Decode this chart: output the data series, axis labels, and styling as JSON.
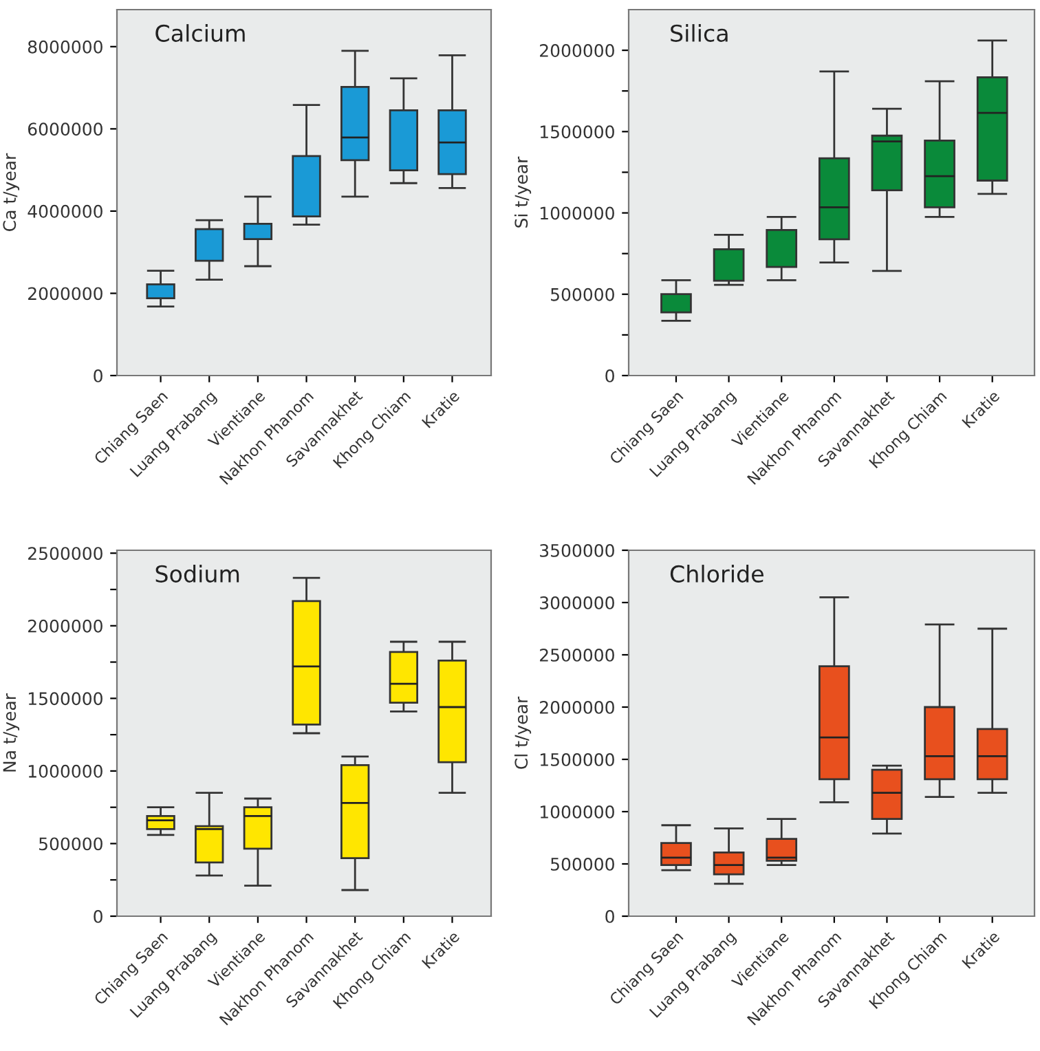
{
  "chart_data": [
    {
      "type": "box",
      "title": "Calcium",
      "ylabel": "Ca t/year",
      "categories": [
        "Chiang Saen",
        "Luang Prabang",
        "Vientiane",
        "Nakhon Phanom",
        "Savannakhet",
        "Khong Chiam",
        "Kratie"
      ],
      "color": "#1a9ad6",
      "ylim": [
        0,
        8900000
      ],
      "yticks": [
        0,
        2000000,
        4000000,
        6000000,
        8000000
      ],
      "boxes": [
        {
          "low": 1680000,
          "q1": 1880000,
          "median": null,
          "q3": 2220000,
          "high": 2550000
        },
        {
          "low": 2330000,
          "q1": 2790000,
          "median": null,
          "q3": 3560000,
          "high": 3780000
        },
        {
          "low": 2660000,
          "q1": 3320000,
          "median": null,
          "q3": 3690000,
          "high": 4350000
        },
        {
          "low": 3670000,
          "q1": 3870000,
          "median": null,
          "q3": 5340000,
          "high": 6580000
        },
        {
          "low": 4350000,
          "q1": 5240000,
          "median": 5790000,
          "q3": 7020000,
          "high": 7900000
        },
        {
          "low": 4680000,
          "q1": 4990000,
          "median": null,
          "q3": 6450000,
          "high": 7230000
        },
        {
          "low": 4560000,
          "q1": 4900000,
          "median": 5670000,
          "q3": 6450000,
          "high": 7790000
        }
      ]
    },
    {
      "type": "box",
      "title": "Silica",
      "ylabel": "Si t/year",
      "categories": [
        "Chiang Saen",
        "Luang Prabang",
        "Vientiane",
        "Nakhon Phanom",
        "Savannakhet",
        "Khong Chiam",
        "Kratie"
      ],
      "color": "#0a8a3a",
      "ylim": [
        0,
        2250000
      ],
      "yticks": [
        0,
        {
          "value": 250000,
          "label": null
        },
        500000,
        {
          "value": 750000,
          "label": null
        },
        1000000,
        {
          "value": 1250000,
          "label": null
        },
        1500000,
        {
          "value": 1750000,
          "label": null
        },
        2000000
      ],
      "boxes": [
        {
          "low": 337000,
          "q1": 389000,
          "median": null,
          "q3": 501000,
          "high": 586000
        },
        {
          "low": 558000,
          "q1": 583000,
          "median": null,
          "q3": 777000,
          "high": 865000
        },
        {
          "low": 586000,
          "q1": 668000,
          "median": null,
          "q3": 895000,
          "high": 975000
        },
        {
          "low": 695000,
          "q1": 838000,
          "median": 1035000,
          "q3": 1336000,
          "high": 1870000
        },
        {
          "low": 643000,
          "q1": 1139000,
          "median": 1440000,
          "q3": 1475000,
          "high": 1640000
        },
        {
          "low": 975000,
          "q1": 1035000,
          "median": 1226000,
          "q3": 1445000,
          "high": 1810000
        },
        {
          "low": 1117000,
          "q1": 1199000,
          "median": 1615000,
          "q3": 1834000,
          "high": 2060000
        }
      ]
    },
    {
      "type": "box",
      "title": "Sodium",
      "ylabel": "Na t/year",
      "categories": [
        "Chiang Saen",
        "Luang Prabang",
        "Vientiane",
        "Nakhon Phanom",
        "Savannakhet",
        "Khong Chiam",
        "Kratie"
      ],
      "color": "#ffe600",
      "ylim": [
        0,
        2520000
      ],
      "yticks": [
        0,
        {
          "value": 250000,
          "label": null
        },
        500000,
        {
          "value": 750000,
          "label": null
        },
        1000000,
        {
          "value": 1250000,
          "label": null
        },
        1500000,
        {
          "value": 1750000,
          "label": null
        },
        2000000,
        {
          "value": 2250000,
          "label": null
        },
        2500000
      ],
      "boxes": [
        {
          "low": 560000,
          "q1": 600000,
          "median": 660000,
          "q3": 690000,
          "high": 750000
        },
        {
          "low": 280000,
          "q1": 370000,
          "median": 600000,
          "q3": 620000,
          "high": 850000
        },
        {
          "low": 210000,
          "q1": 465000,
          "median": 690000,
          "q3": 750000,
          "high": 810000
        },
        {
          "low": 1260000,
          "q1": 1320000,
          "median": 1720000,
          "q3": 2170000,
          "high": 2330000
        },
        {
          "low": 180000,
          "q1": 400000,
          "median": 780000,
          "q3": 1040000,
          "high": 1100000
        },
        {
          "low": 1410000,
          "q1": 1470000,
          "median": 1600000,
          "q3": 1820000,
          "high": 1890000
        },
        {
          "low": 850000,
          "q1": 1060000,
          "median": 1440000,
          "q3": 1760000,
          "high": 1890000
        }
      ]
    },
    {
      "type": "box",
      "title": "Chloride",
      "ylabel": "Cl t/year",
      "categories": [
        "Chiang Saen",
        "Luang Prabang",
        "Vientiane",
        "Nakhon Phanom",
        "Savannakhet",
        "Khong Chiam",
        "Kratie"
      ],
      "color": "#e8501e",
      "ylim": [
        0,
        3500000
      ],
      "yticks": [
        0,
        500000,
        1000000,
        1500000,
        2000000,
        2500000,
        3000000,
        3500000
      ],
      "boxes": [
        {
          "low": 440000,
          "q1": 490000,
          "median": 560000,
          "q3": 700000,
          "high": 870000
        },
        {
          "low": 310000,
          "q1": 400000,
          "median": 490000,
          "q3": 610000,
          "high": 840000
        },
        {
          "low": 490000,
          "q1": 530000,
          "median": 560000,
          "q3": 740000,
          "high": 930000
        },
        {
          "low": 1090000,
          "q1": 1310000,
          "median": 1710000,
          "q3": 2390000,
          "high": 3050000
        },
        {
          "low": 790000,
          "q1": 930000,
          "median": 1180000,
          "q3": 1400000,
          "high": 1440000
        },
        {
          "low": 1140000,
          "q1": 1310000,
          "median": 1530000,
          "q3": 2000000,
          "high": 2790000
        },
        {
          "low": 1180000,
          "q1": 1310000,
          "median": 1530000,
          "q3": 1790000,
          "high": 2750000
        }
      ]
    }
  ]
}
